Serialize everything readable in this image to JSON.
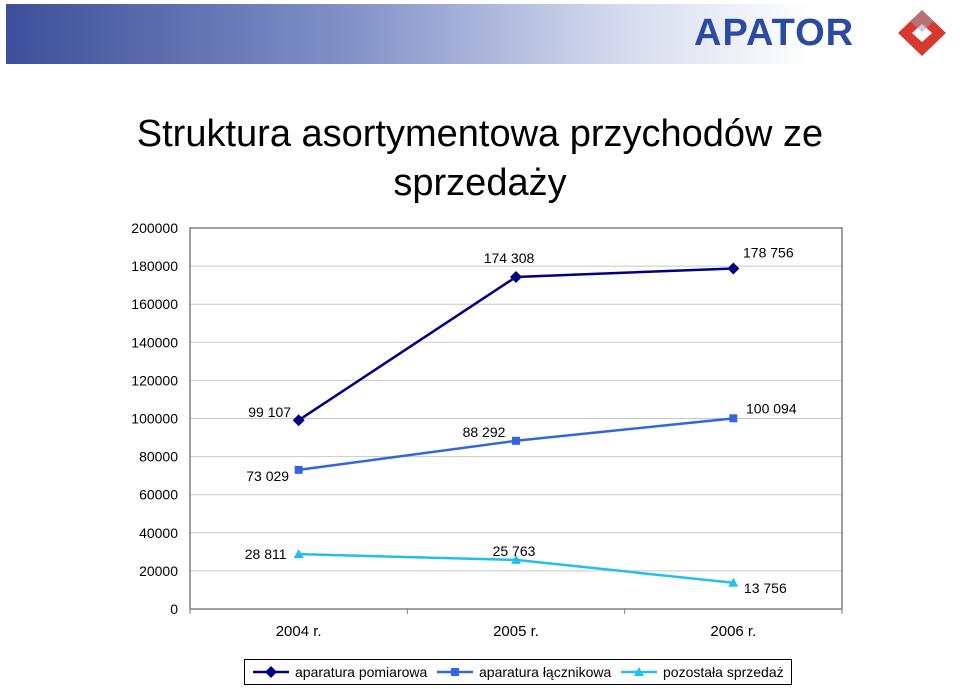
{
  "logo": {
    "text": "APATOR",
    "colors": {
      "text": "#2a4aa3",
      "mark": "#d63a2f"
    }
  },
  "chart_data": {
    "type": "line",
    "title": "Struktura asortymentowa przychodów ze sprzedaży",
    "categories": [
      "2004 r.",
      "2005 r.",
      "2006 r."
    ],
    "ylim": [
      0,
      200000
    ],
    "yticks": [
      "200000",
      "180000",
      "160000",
      "140000",
      "120000",
      "100000",
      "80000",
      "60000",
      "40000",
      "20000",
      "0"
    ],
    "grid": true,
    "legend_position": "bottom",
    "series": [
      {
        "name": "aparatura pomiarowa",
        "values": [
          99107,
          174308,
          178756
        ],
        "labels": [
          "99 107",
          "174 308",
          "178 756"
        ],
        "color": "#000080",
        "marker": "diamond"
      },
      {
        "name": "aparatura łącznikowa",
        "values": [
          73029,
          88292,
          100094
        ],
        "labels": [
          "73 029",
          "88 292",
          "100 094"
        ],
        "color": "#3366dd",
        "marker": "square"
      },
      {
        "name": "pozostała sprzedaż",
        "values": [
          28811,
          25763,
          13756
        ],
        "labels": [
          "28 811",
          "25 763",
          "13 756"
        ],
        "color": "#22c0e8",
        "marker": "triangle"
      }
    ]
  }
}
